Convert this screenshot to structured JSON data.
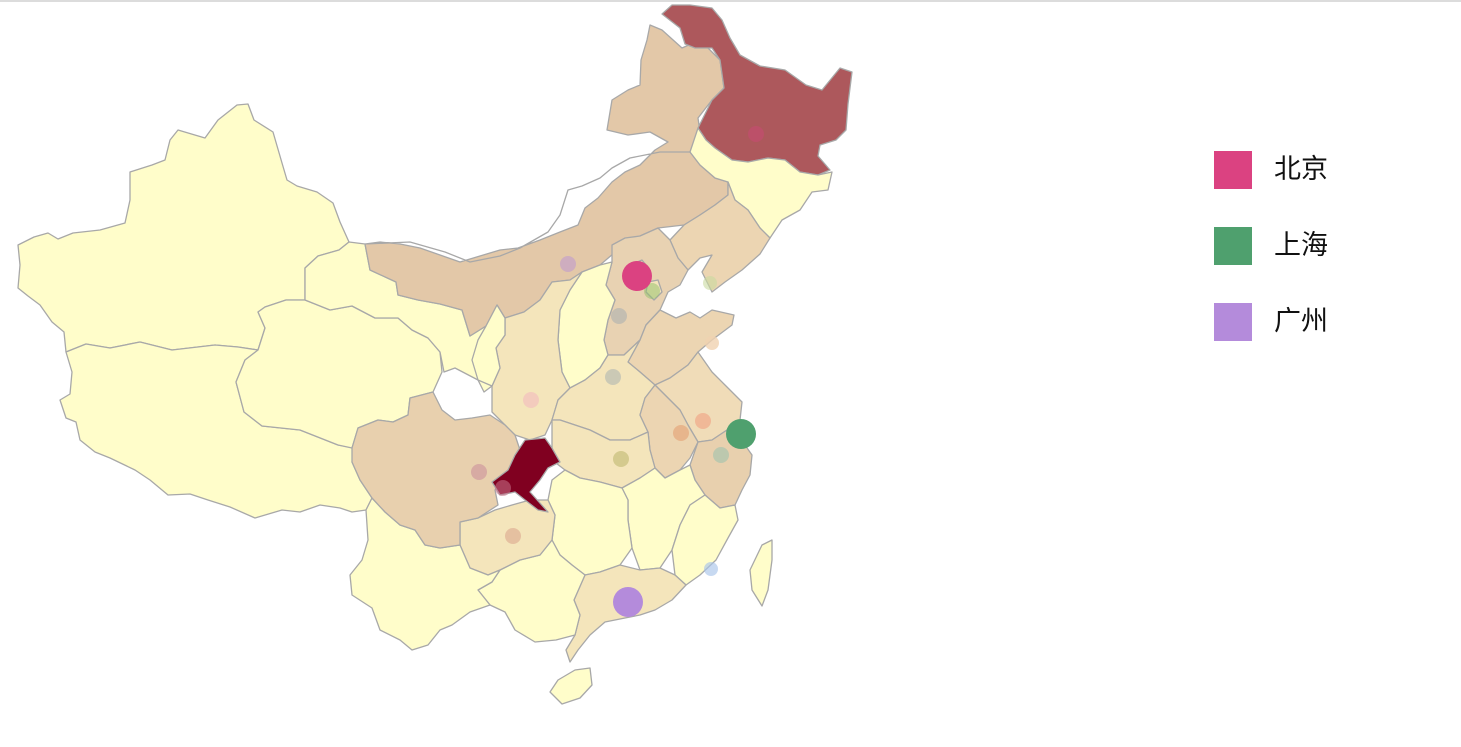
{
  "legend": {
    "items": [
      {
        "label": "北京",
        "color": "#db4281"
      },
      {
        "label": "上海",
        "color": "#4fa06e"
      },
      {
        "label": "广州",
        "color": "#b48bdb"
      }
    ]
  },
  "map": {
    "region": "China",
    "fill_levels": {
      "lowest": "#fffdca",
      "low": "#f4e5bb",
      "mid": "#e7cdaa",
      "high": "#ad585c",
      "highest": "#800020"
    },
    "stroke": "#a8a8a8",
    "highlighted_city_markers": [
      {
        "city_legend": "北京",
        "color": "#db4281"
      },
      {
        "city_legend": "上海",
        "color": "#4fa06e"
      },
      {
        "city_legend": "广州",
        "color": "#b48bdb"
      }
    ]
  }
}
